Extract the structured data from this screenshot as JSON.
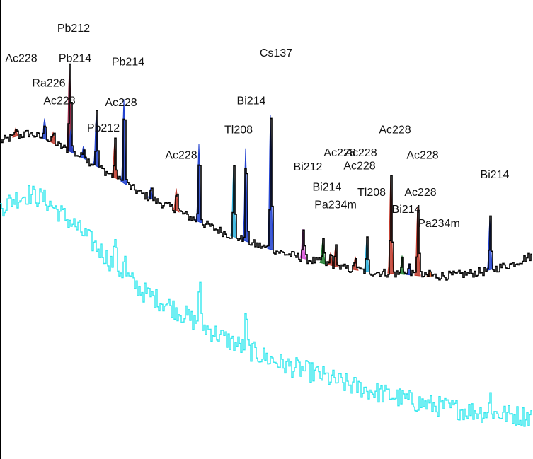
{
  "chart_data": {
    "type": "line",
    "title": "",
    "xlabel": "",
    "ylabel": "",
    "grid": false,
    "legend": "none",
    "y_scale": "log",
    "x_range": [
      0,
      750
    ],
    "y_range_log10": [
      0.4,
      5.6
    ],
    "series": [
      {
        "color": "#000000",
        "knots_x": [
          0,
          20,
          40,
          60,
          80,
          100,
          120,
          140,
          160,
          180,
          200,
          240,
          280,
          320,
          360,
          400,
          440,
          480,
          520,
          560,
          600,
          640,
          680,
          720,
          750
        ],
        "knots_log10": [
          4.0,
          4.05,
          4.09,
          4.04,
          3.96,
          3.88,
          3.8,
          3.7,
          3.6,
          3.5,
          3.4,
          3.25,
          3.09,
          2.95,
          2.83,
          2.73,
          2.65,
          2.57,
          2.52,
          2.5,
          2.47,
          2.48,
          2.52,
          2.6,
          2.7
        ],
        "noise": 0.05
      },
      {
        "color": "#33e8ee",
        "knots_x": [
          0,
          20,
          40,
          60,
          80,
          100,
          120,
          140,
          160,
          180,
          200,
          240,
          280,
          320,
          360,
          400,
          440,
          480,
          520,
          560,
          600,
          640,
          680,
          720,
          750
        ],
        "knots_log10": [
          3.25,
          3.35,
          3.4,
          3.35,
          3.22,
          3.08,
          2.93,
          2.77,
          2.6,
          2.45,
          2.3,
          2.13,
          1.93,
          1.75,
          1.6,
          1.47,
          1.38,
          1.27,
          1.18,
          1.1,
          1.02,
          0.97,
          0.93,
          0.9,
          0.88
        ],
        "noise": 0.12
      }
    ],
    "peaks": [
      {
        "name": "Ac228",
        "x": 22,
        "height": 0.09,
        "color": "#c0392b"
      },
      {
        "name": "Ra226",
        "x": 75,
        "height": 0.12,
        "color": "#c0392b"
      },
      {
        "name": "Ac228",
        "x": 63,
        "height": 0.23,
        "color": "#1f3fcf"
      },
      {
        "name": "Pb212",
        "x": 98,
        "height": 0.95,
        "color": "#8e2040"
      },
      {
        "name": "Pb214",
        "x": 100,
        "height": 0.25,
        "color": "#1f3fcf"
      },
      {
        "name": "Pb212",
        "x": 118,
        "height": 0.14,
        "color": "#1f3fcf"
      },
      {
        "name": "Ac228",
        "x": 136,
        "height": 0.6,
        "color": "#1f3fcf"
      },
      {
        "name": "Ac228",
        "x": 162,
        "height": 0.4,
        "color": "#c0392b"
      },
      {
        "name": "Pb214",
        "x": 175,
        "height": 0.95,
        "color": "#1f3fcf"
      },
      {
        "name": "Ac228",
        "x": 213,
        "height": 0.12,
        "color": "#1f3fcf"
      },
      {
        "name": "Ac228",
        "x": 249,
        "height": 0.25,
        "color": "#c0392b"
      },
      {
        "name": "Bi214",
        "x": 281,
        "height": 0.88,
        "color": "#1f3fcf"
      },
      {
        "name": "Tl208",
        "x": 330,
        "height": 0.78,
        "color": "#2ab0dd"
      },
      {
        "name": "Bi214",
        "x": 347,
        "height": 1.05,
        "color": "#1f3fcf"
      },
      {
        "name": "Cs137",
        "x": 382,
        "height": 1.52,
        "color": "#1f3fcf"
      },
      {
        "name": "Bi212",
        "x": 428,
        "height": 0.33,
        "color": "#d84fd8"
      },
      {
        "name": "Bi214",
        "x": 456,
        "height": 0.26,
        "color": "#1b7a2a"
      },
      {
        "name": "Pa234m",
        "x": 467,
        "height": 0.14,
        "color": "#c0392b"
      },
      {
        "name": "Ac228",
        "x": 474,
        "height": 0.22,
        "color": "#c0392b"
      },
      {
        "name": "Ac228",
        "x": 502,
        "height": 0.15,
        "color": "#c0392b"
      },
      {
        "name": "Tl208",
        "x": 518,
        "height": 0.36,
        "color": "#2ab0dd"
      },
      {
        "name": "Ac228",
        "x": 552,
        "height": 1.11,
        "color": "#c0392b"
      },
      {
        "name": "Bi214",
        "x": 568,
        "height": 0.21,
        "color": "#1b7a2a"
      },
      {
        "name": "Ac228",
        "x": 578,
        "height": 0.13,
        "color": "#1f3fcf"
      },
      {
        "name": "Ac228",
        "x": 590,
        "height": 0.77,
        "color": "#c0392b"
      },
      {
        "name": "Pa234m",
        "x": 607,
        "height": 0.06,
        "color": "#e0602a"
      },
      {
        "name": "Bi214",
        "x": 692,
        "height": 0.58,
        "color": "#1f3fcf"
      }
    ],
    "cyan_peaks": [
      {
        "x": 162,
        "height": 0.37
      },
      {
        "x": 175,
        "height": 0.22
      },
      {
        "x": 281,
        "height": 0.55
      },
      {
        "x": 347,
        "height": 0.4
      },
      {
        "x": 692,
        "height": 0.22
      }
    ],
    "labels": [
      {
        "text": "Pb212",
        "x": 104,
        "y": 5.24
      },
      {
        "text": "Ac228",
        "x": 30,
        "y": 4.9
      },
      {
        "text": "Pb214",
        "x": 106,
        "y": 4.9
      },
      {
        "text": "Pb214",
        "x": 181,
        "y": 4.86
      },
      {
        "text": "Cs137",
        "x": 390,
        "y": 4.96
      },
      {
        "text": "Ra226",
        "x": 69,
        "y": 4.62
      },
      {
        "text": "Ac228",
        "x": 84,
        "y": 4.42
      },
      {
        "text": "Ac228",
        "x": 171,
        "y": 4.4
      },
      {
        "text": "Bi214",
        "x": 355,
        "y": 4.42
      },
      {
        "text": "Pb212",
        "x": 146,
        "y": 4.11
      },
      {
        "text": "Tl208",
        "x": 337,
        "y": 4.09
      },
      {
        "text": "Ac228",
        "x": 558,
        "y": 4.09
      },
      {
        "text": "Ac228",
        "x": 256,
        "y": 3.8
      },
      {
        "text": "Ac228",
        "x": 480,
        "y": 3.83
      },
      {
        "text": "Ac228",
        "x": 510,
        "y": 3.83
      },
      {
        "text": "Ac228",
        "x": 597,
        "y": 3.8
      },
      {
        "text": "Bi212",
        "x": 435,
        "y": 3.67
      },
      {
        "text": "Ac228",
        "x": 508,
        "y": 3.68
      },
      {
        "text": "Bi214",
        "x": 699,
        "y": 3.58
      },
      {
        "text": "Bi214",
        "x": 462,
        "y": 3.44
      },
      {
        "text": "Tl208",
        "x": 525,
        "y": 3.38
      },
      {
        "text": "Ac228",
        "x": 594,
        "y": 3.38
      },
      {
        "text": "Pa234m",
        "x": 474,
        "y": 3.24
      },
      {
        "text": "Bi214",
        "x": 574,
        "y": 3.19
      },
      {
        "text": "Pa234m",
        "x": 620,
        "y": 3.03
      }
    ]
  }
}
